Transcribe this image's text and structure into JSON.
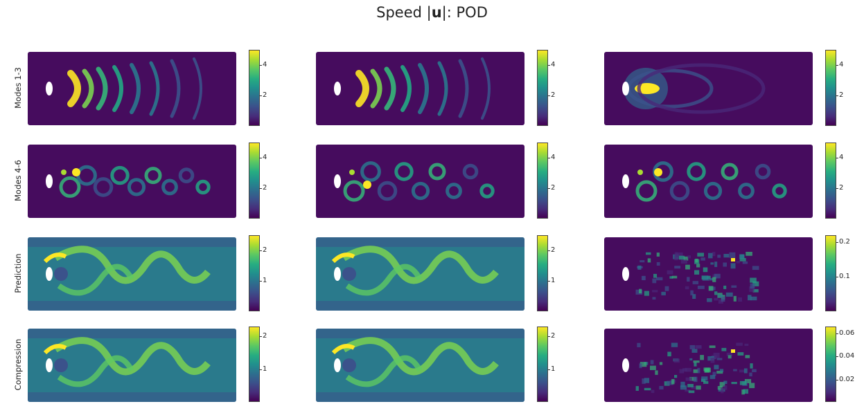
{
  "title": {
    "prefix": "Speed |",
    "bold": "u",
    "suffix": "|: POD"
  },
  "chart_data": {
    "type": "heatmap",
    "title": "Speed |u|: POD",
    "colormap": "viridis",
    "rows": [
      {
        "label": "Modes 1-3",
        "panels": [
          {
            "pattern": "arcs",
            "colorbar": {
              "ticks": [
                "4",
                "2"
              ],
              "vmin": 0,
              "vmax": 5
            }
          },
          {
            "pattern": "arcs",
            "colorbar": {
              "ticks": [
                "4",
                "2"
              ],
              "vmin": 0,
              "vmax": 5
            }
          },
          {
            "pattern": "jet",
            "colorbar": {
              "ticks": [
                "4",
                "2"
              ],
              "vmin": 0,
              "vmax": 5
            }
          }
        ]
      },
      {
        "label": "Modes 4-6",
        "panels": [
          {
            "pattern": "vortices",
            "colorbar": {
              "ticks": [
                "4",
                "2"
              ],
              "vmin": 0,
              "vmax": 5
            }
          },
          {
            "pattern": "vortices",
            "colorbar": {
              "ticks": [
                "4",
                "2"
              ],
              "vmin": 0,
              "vmax": 5
            }
          },
          {
            "pattern": "vortices",
            "colorbar": {
              "ticks": [
                "4",
                "2"
              ],
              "vmin": 0,
              "vmax": 5
            }
          }
        ]
      },
      {
        "label": "Prediction",
        "panels": [
          {
            "pattern": "flow",
            "colorbar": {
              "ticks": [
                "2",
                "1"
              ],
              "vmin": 0,
              "vmax": 2.5
            }
          },
          {
            "pattern": "flow",
            "colorbar": {
              "ticks": [
                "2",
                "1"
              ],
              "vmin": 0,
              "vmax": 2.5
            }
          },
          {
            "pattern": "noise",
            "colorbar": {
              "ticks": [
                "0.2",
                "0.1"
              ],
              "vmin": 0,
              "vmax": 0.22
            }
          }
        ]
      },
      {
        "label": "Compression",
        "panels": [
          {
            "pattern": "flow",
            "colorbar": {
              "ticks": [
                "2",
                "1"
              ],
              "vmin": 0,
              "vmax": 2.3
            }
          },
          {
            "pattern": "flow",
            "colorbar": {
              "ticks": [
                "2",
                "1"
              ],
              "vmin": 0,
              "vmax": 2.3
            }
          },
          {
            "pattern": "noise",
            "colorbar": {
              "ticks": [
                "0.06",
                "0.04",
                "0.02"
              ],
              "vmin": 0,
              "vmax": 0.066
            }
          }
        ]
      }
    ]
  }
}
